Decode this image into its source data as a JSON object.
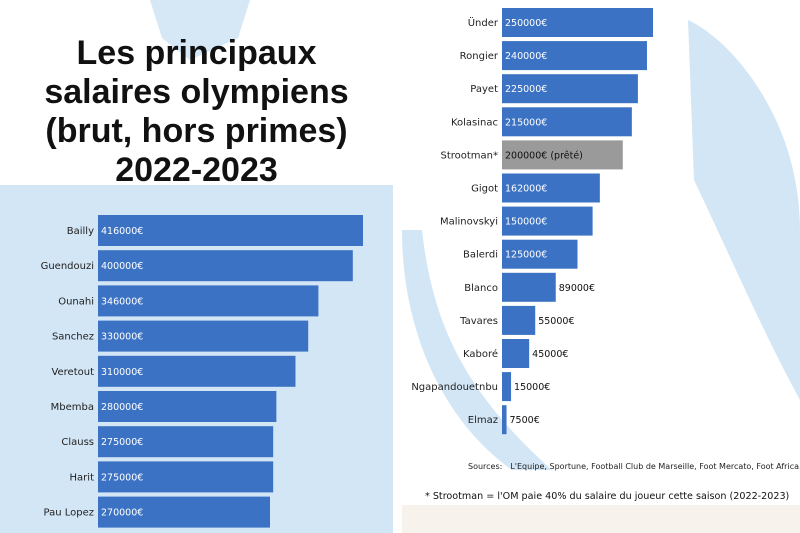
{
  "title_lines": [
    "Les principaux",
    "salaires olympiens",
    "(brut, hors primes)",
    "2022-2023"
  ],
  "colors": {
    "bar": "#3b72c4",
    "loan_bar": "#9a9a9a",
    "background_shape": "#cfe4f5",
    "text": "#111111"
  },
  "chart_data": [
    {
      "type": "bar",
      "orientation": "horizontal",
      "categories": [
        "Bailly",
        "Guendouzi",
        "Ounahi",
        "Sanchez",
        "Veretout",
        "Mbemba",
        "Clauss",
        "Harit",
        "Pau Lopez"
      ],
      "values": [
        416000,
        400000,
        346000,
        330000,
        310000,
        280000,
        275000,
        275000,
        270000
      ],
      "data_labels": [
        "416000€",
        "400000€",
        "346000€",
        "330000€",
        "310000€",
        "280000€",
        "275000€",
        "275000€",
        "270000€"
      ],
      "xlim": [
        0,
        416000
      ],
      "grid": false
    },
    {
      "type": "bar",
      "orientation": "horizontal",
      "categories": [
        "Ünder",
        "Rongier",
        "Payet",
        "Kolasinac",
        "Strootman*",
        "Gigot",
        "Malinovskyi",
        "Balerdi",
        "Blanco",
        "Tavares",
        "Kaboré",
        "Ngapandouetnbu",
        "Elmaz"
      ],
      "values": [
        250000,
        240000,
        225000,
        215000,
        200000,
        162000,
        150000,
        125000,
        89000,
        55000,
        45000,
        15000,
        7500
      ],
      "data_labels": [
        "250000€",
        "240000€",
        "225000€",
        "215000€",
        "200000€ (prêté)",
        "162000€",
        "150000€",
        "125000€",
        "89000€",
        "55000€",
        "45000€",
        "15000€",
        "7500€"
      ],
      "highlight": [
        "",
        "",
        "",
        "",
        "loan",
        "",
        "",
        "",
        "",
        "",
        "",
        "",
        ""
      ],
      "xlim": [
        0,
        250000
      ],
      "grid": false
    }
  ],
  "sources": {
    "label": "Sources:",
    "list": "L'Equipe, Sportune, Football Club de Marseille, Foot Mercato, Foot Africa."
  },
  "footnote": "* Strootman = l'OM paie 40% du salaire du joueur cette saison (2022-2023)"
}
